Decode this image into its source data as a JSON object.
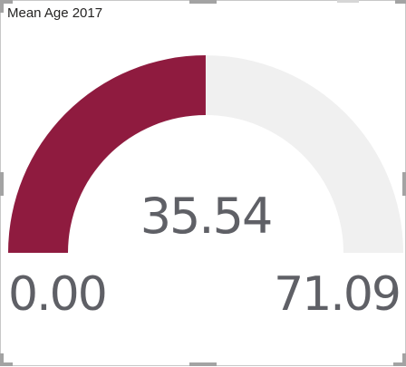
{
  "visual": {
    "title": "Mean Age 2017"
  },
  "gauge": {
    "value": 35.54,
    "value_label": "35.54",
    "min": 0,
    "min_label": "0.00",
    "max": 71.09,
    "max_label": "71.09",
    "fill_color": "#8f1b3f",
    "track_color": "#f0f0f0"
  }
}
